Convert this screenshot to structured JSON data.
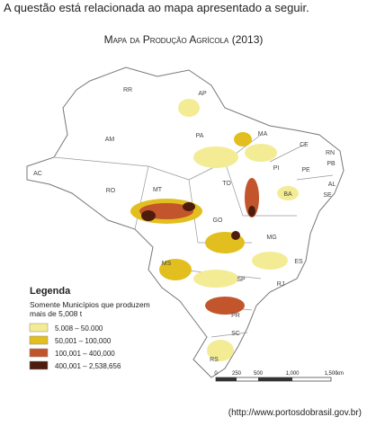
{
  "header": {
    "text": "A questão está relacionada ao mapa apresentado a seguir."
  },
  "map": {
    "title": "Mapa da Produção Agrícola (2013)",
    "states": [
      "RR",
      "AP",
      "AM",
      "PA",
      "MA",
      "CE",
      "RN",
      "PB",
      "PE",
      "PI",
      "AL",
      "SE",
      "AC",
      "RO",
      "MT",
      "TO",
      "BA",
      "GO",
      "MG",
      "MS",
      "ES",
      "RJ",
      "SP",
      "PR",
      "SC",
      "RS"
    ],
    "legend": {
      "title": "Legenda",
      "subtitle": [
        "Somente Municípios que produzem",
        "mais de 5,008 t"
      ],
      "items": [
        {
          "label": "5.008 – 50.000",
          "color": "#f3ec94"
        },
        {
          "label": "50,001 – 100,000",
          "color": "#e2bf1e"
        },
        {
          "label": "100,001 – 400,000",
          "color": "#c2552b"
        },
        {
          "label": "400,001 – 2,538,656",
          "color": "#4e1c0c"
        }
      ]
    },
    "scale": [
      "0",
      "250",
      "500",
      "1,000",
      "1,500",
      "km"
    ]
  },
  "source": "(http://www.portosdobrasil.gov.br)"
}
